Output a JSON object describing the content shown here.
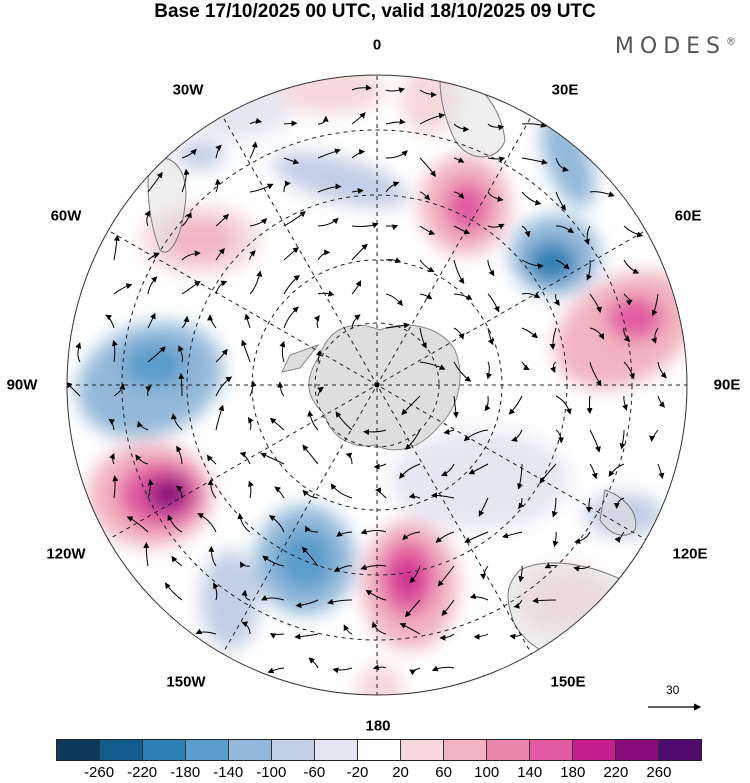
{
  "header": {
    "title": "Base 17/10/2025 00 UTC, valid 18/10/2025 09 UTC",
    "brand": "MODES",
    "brand_mark": "®"
  },
  "map": {
    "projection": "south polar stereographic",
    "longitude_labels": {
      "lon_0": "0",
      "lon_30e": "30E",
      "lon_60e": "60E",
      "lon_90e": "90E",
      "lon_120e": "120E",
      "lon_150e": "150E",
      "lon_180": "180",
      "lon_150w": "150W",
      "lon_120w": "120W",
      "lon_90w": "90W",
      "lon_60w": "60W",
      "lon_30w": "30W"
    },
    "wind_reference": "30"
  },
  "colorbar": {
    "ticks": [
      "-260",
      "-220",
      "-180",
      "-140",
      "-100",
      "-60",
      "-20",
      "20",
      "60",
      "100",
      "140",
      "180",
      "220",
      "260"
    ],
    "colors": [
      "#0d3a5c",
      "#135d8c",
      "#2b7fb5",
      "#5a9ccb",
      "#93b8d9",
      "#c3cfe6",
      "#e6e6f2",
      "#ffffff",
      "#f7d8db",
      "#f1b3c0",
      "#ec86ad",
      "#e25aa1",
      "#c81d8e",
      "#8b0d7d",
      "#4f0a6b"
    ]
  }
}
